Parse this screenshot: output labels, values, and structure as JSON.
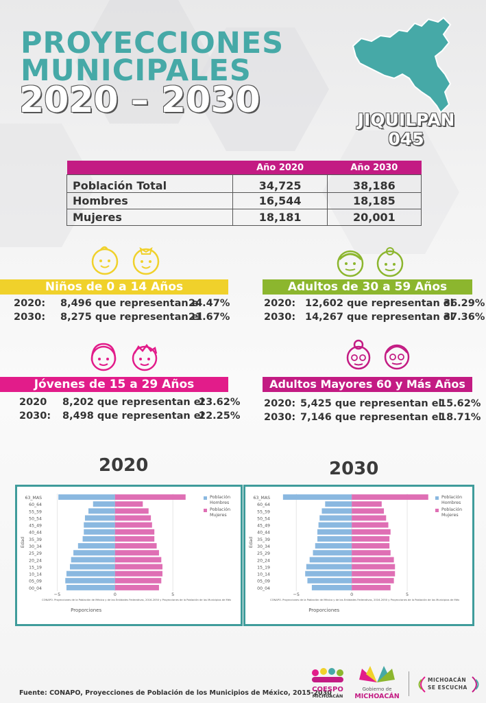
{
  "header": {
    "title_line1": "PROYECCIONES",
    "title_line2": "MUNICIPALES",
    "title_line3": "2020 – 2030",
    "municipality": "JIQUILPAN",
    "code": "045",
    "map_icon": "municipality-map-icon"
  },
  "colors": {
    "teal": "#46a9a7",
    "magenta": "#c31b83",
    "yellow": "#f0d12b",
    "green": "#8cb62e",
    "pink": "#e21c8a",
    "hombres": "#8ab8e0",
    "mujeres": "#df6fb4"
  },
  "population_table": {
    "headers": [
      "",
      "Año 2020",
      "Año 2030"
    ],
    "rows": [
      {
        "label": "Población Total",
        "y2020": "34,725",
        "y2030": "38,186"
      },
      {
        "label": "Hombres",
        "y2020": "16,544",
        "y2030": "18,185"
      },
      {
        "label": "Mujeres",
        "y2020": "18,181",
        "y2030": "20,001"
      }
    ]
  },
  "groups": {
    "ninos": {
      "title": "Niños de 0 a 14 Años",
      "icons": [
        "baby-boy-icon",
        "baby-girl-icon"
      ],
      "rows": [
        {
          "year": "2020:",
          "text": "8,496 que representan el",
          "pct": "24.47%"
        },
        {
          "year": "2030:",
          "text": "8,275 que representan el",
          "pct": "21.67%"
        }
      ]
    },
    "adultos": {
      "title": "Adultos de 30 a 59 Años",
      "icons": [
        "adult-man-icon",
        "adult-woman-icon"
      ],
      "rows": [
        {
          "year": "2020:",
          "text": "12,602 que representan el",
          "pct": "36.29%"
        },
        {
          "year": "2030:",
          "text": "14,267  que representan el",
          "pct": "37.36%"
        }
      ]
    },
    "jovenes": {
      "title": "Jóvenes de 15 a 29 Años",
      "icons": [
        "young-woman-icon",
        "young-man-icon"
      ],
      "rows": [
        {
          "year": "2020",
          "text": "8,202 que representan el",
          "pct": "23.62%"
        },
        {
          "year": "2030:",
          "text": "8,498 que representan el",
          "pct": "22.25%"
        }
      ]
    },
    "mayores": {
      "title": "Adultos Mayores  60 y Más Años",
      "icons": [
        "elderly-woman-icon",
        "elderly-man-icon"
      ],
      "rows": [
        {
          "year": "2020:",
          "text": "5,425 que representan el",
          "pct": "15.62%"
        },
        {
          "year": "2030:",
          "text": "7,146 que representan el",
          "pct": "18.71%"
        }
      ]
    }
  },
  "chart_year_labels": [
    "2020",
    "2030"
  ],
  "chart_data": [
    {
      "type": "bar",
      "orientation": "horizontal",
      "categories": [
        "00_04",
        "05_09",
        "10_14",
        "15_19",
        "20_24",
        "25_29",
        "30_34",
        "35_39",
        "40_44",
        "45_49",
        "50_54",
        "55_59",
        "60_64",
        "63_MAS"
      ],
      "series": [
        {
          "name": "Población Hombres",
          "values": [
            -4.2,
            -4.3,
            -4.2,
            -3.9,
            -3.8,
            -3.6,
            -3.2,
            -2.8,
            -2.7,
            -2.7,
            -2.6,
            -2.3,
            -1.9,
            -4.9
          ]
        },
        {
          "name": "Población Mujeres",
          "values": [
            3.8,
            4.0,
            4.1,
            4.1,
            4.0,
            3.8,
            3.6,
            3.4,
            3.4,
            3.2,
            3.1,
            2.9,
            2.4,
            6.1
          ]
        }
      ],
      "xlabel": "Proporciones",
      "ylabel": "Edad",
      "xticks": [
        "−5",
        "0",
        "5"
      ],
      "xlim": [
        -5.5,
        10.5
      ],
      "legend": "top-right",
      "note": "CONAPO. Proyecciones de la Población de México y de las Entidades Federativas, 2016-2050 y Proyecciones de la Población de los Municipios de Méx"
    },
    {
      "type": "bar",
      "orientation": "horizontal",
      "categories": [
        "00_04",
        "05_09",
        "10_14",
        "15_19",
        "20_24",
        "25_29",
        "30_34",
        "35_39",
        "40_44",
        "45_49",
        "50_54",
        "55_59",
        "60_64",
        "63_MAS"
      ],
      "series": [
        {
          "name": "Población Hombres",
          "values": [
            -3.6,
            -4.0,
            -4.2,
            -4.1,
            -3.8,
            -3.5,
            -3.3,
            -3.1,
            -3.1,
            -3.0,
            -2.9,
            -2.7,
            -2.4,
            -6.2
          ]
        },
        {
          "name": "Población Mujeres",
          "values": [
            3.5,
            3.8,
            3.9,
            3.9,
            3.8,
            3.5,
            3.4,
            3.4,
            3.5,
            3.3,
            3.1,
            2.9,
            2.7,
            6.9
          ]
        }
      ],
      "xlabel": "Proporciones",
      "ylabel": "Edad",
      "xticks": [
        "−5",
        "0",
        "5"
      ],
      "xlim": [
        -6.5,
        10.5
      ],
      "legend": "top-right",
      "note": "CONAPO. Proyecciones de la Población de México y de las Entidades Federativas, 2016-2050 y Proyecciones de la Población de los Municipios de Méx"
    }
  ],
  "footer": {
    "source": "Fuente: CONAPO, Proyecciones de Población de los Municipios de México, 2015-2030",
    "logo1_line1": "COESPO",
    "logo1_line2": "MICHOACÁN",
    "logo2_line1": "Gobierno de",
    "logo2_line2": "MICHOACÁN",
    "logo3_line1": "MICHOACÁN",
    "logo3_line2": "SE ESCUCHA"
  }
}
